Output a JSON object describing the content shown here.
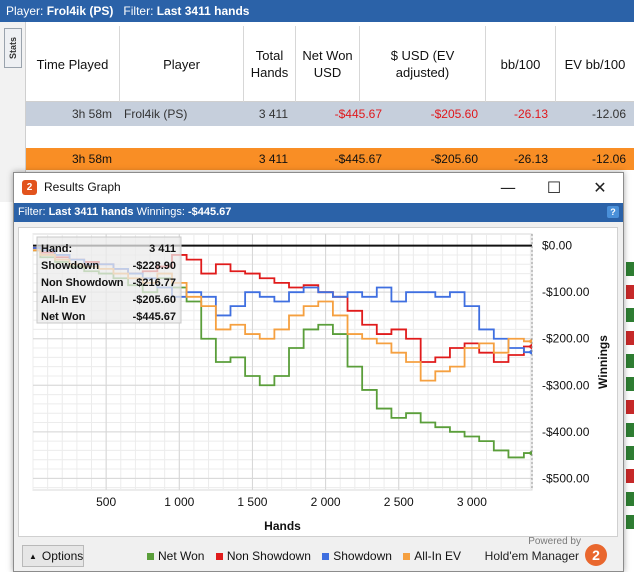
{
  "topbar": {
    "player_label": "Player:",
    "player": "Frol4ik (PS)",
    "filter_label": "Filter:",
    "filter": "Last 3411 hands"
  },
  "stats_tab": "Stats",
  "table": {
    "headers": [
      "Time Played",
      "Player",
      "Total Hands",
      "Net Won USD",
      "$ USD (EV adjusted)",
      "bb/100",
      "EV bb/100"
    ],
    "row": {
      "time": "3h 58m",
      "player": "Frol4ik (PS)",
      "hands": "3 411",
      "net": "-$445.67",
      "ev_usd": "-$205.60",
      "bb100": "-26.13",
      "ev_bb100": "-12.06"
    },
    "summary": {
      "time": "3h 58m",
      "hands": "3 411",
      "net": "-$445.67",
      "ev_usd": "-$205.60",
      "bb100": "-26.13",
      "ev_bb100": "-12.06"
    }
  },
  "graph_window": {
    "title": "Results Graph",
    "logo_char": "2",
    "minimize": "—",
    "maximize": "☐",
    "close": "✕",
    "filter_label": "Filter:",
    "filter": "Last 3411 hands",
    "winnings_label": "Winnings:",
    "winnings": "-$445.67",
    "help": "?"
  },
  "tooltip": {
    "hand_label": "Hand:",
    "hand_value": "3 411",
    "rows": [
      {
        "label": "Showdown",
        "value": "-$228.90"
      },
      {
        "label": "Non Showdown",
        "value": "-$216.77"
      },
      {
        "label": "All-In EV",
        "value": "-$205.60"
      },
      {
        "label": "Net Won",
        "value": "-$445.67"
      }
    ]
  },
  "chart_data": {
    "type": "line",
    "xlabel": "Hands",
    "ylabel": "Winnings",
    "xlim": [
      0,
      3411
    ],
    "ylim": [
      -500,
      0
    ],
    "x_ticks": [
      500,
      1000,
      1500,
      2000,
      2500,
      3000
    ],
    "x_tick_labels": [
      "500",
      "1 000",
      "1 500",
      "2 000",
      "2 500",
      "3 000"
    ],
    "y_ticks": [
      0,
      -100,
      -200,
      -300,
      -400,
      -500
    ],
    "y_tick_labels": [
      "$0.00",
      "-$100.00",
      "-$200.00",
      "-$300.00",
      "-$400.00",
      "-$500.00"
    ],
    "grid": true,
    "colors": {
      "net_won": "#5a9e3a",
      "non_showdown": "#e01b1b",
      "showdown": "#3f6fe0",
      "allin_ev": "#f5a040"
    },
    "series": [
      {
        "name": "Net Won",
        "x": [
          0,
          100,
          200,
          300,
          400,
          500,
          600,
          700,
          800,
          900,
          1000,
          1100,
          1200,
          1300,
          1400,
          1500,
          1600,
          1700,
          1800,
          1900,
          2000,
          2100,
          2200,
          2300,
          2400,
          2500,
          2600,
          2700,
          2800,
          2900,
          3000,
          3100,
          3200,
          3300,
          3411
        ],
        "y": [
          -10,
          -25,
          -35,
          -45,
          -55,
          -60,
          -70,
          -85,
          -100,
          -70,
          -90,
          -120,
          -200,
          -250,
          -240,
          -280,
          -300,
          -280,
          -220,
          -180,
          -170,
          -190,
          -260,
          -310,
          -350,
          -370,
          -360,
          -380,
          -390,
          -400,
          -410,
          -420,
          -440,
          -455,
          -445.67
        ]
      },
      {
        "name": "Non Showdown",
        "x": [
          0,
          100,
          200,
          300,
          400,
          500,
          600,
          700,
          800,
          900,
          1000,
          1100,
          1200,
          1300,
          1400,
          1500,
          1600,
          1700,
          1800,
          1900,
          2000,
          2100,
          2200,
          2300,
          2400,
          2500,
          2600,
          2700,
          2800,
          2900,
          3000,
          3100,
          3200,
          3300,
          3411
        ],
        "y": [
          -5,
          -15,
          -25,
          -30,
          -35,
          -40,
          -50,
          -60,
          -55,
          -45,
          -20,
          -30,
          -60,
          -40,
          -55,
          -60,
          -70,
          -80,
          -90,
          -85,
          -100,
          -110,
          -140,
          -170,
          -190,
          -180,
          -200,
          -250,
          -240,
          -220,
          -210,
          -230,
          -250,
          -235,
          -216.77
        ]
      },
      {
        "name": "Showdown",
        "x": [
          0,
          100,
          200,
          300,
          400,
          500,
          600,
          700,
          800,
          900,
          1000,
          1100,
          1200,
          1300,
          1400,
          1500,
          1600,
          1700,
          1800,
          1900,
          2000,
          2100,
          2200,
          2300,
          2400,
          2500,
          2600,
          2700,
          2800,
          2900,
          3000,
          3100,
          3200,
          3300,
          3411
        ],
        "y": [
          -5,
          -10,
          -20,
          -30,
          -40,
          -40,
          -50,
          -60,
          -70,
          -90,
          -110,
          -100,
          -110,
          -150,
          -130,
          -100,
          -110,
          -120,
          -100,
          -90,
          -100,
          -110,
          -100,
          -110,
          -90,
          -120,
          -100,
          -100,
          -110,
          -100,
          -130,
          -180,
          -200,
          -220,
          -228.9
        ]
      },
      {
        "name": "All-In EV",
        "x": [
          0,
          100,
          200,
          300,
          400,
          500,
          600,
          700,
          800,
          900,
          1000,
          1100,
          1200,
          1300,
          1400,
          1500,
          1600,
          1700,
          1800,
          1900,
          2000,
          2100,
          2200,
          2300,
          2400,
          2500,
          2600,
          2700,
          2800,
          2900,
          3000,
          3100,
          3200,
          3300,
          3411
        ],
        "y": [
          -10,
          -20,
          -30,
          -40,
          -45,
          -50,
          -60,
          -70,
          -80,
          -60,
          -80,
          -110,
          -130,
          -180,
          -170,
          -190,
          -200,
          -180,
          -150,
          -130,
          -120,
          -150,
          -190,
          -200,
          -210,
          -230,
          -250,
          -290,
          -270,
          -260,
          -220,
          -210,
          -230,
          -200,
          -205.6
        ]
      }
    ]
  },
  "options_button": "Options",
  "legend": [
    {
      "name": "Net Won",
      "color": "#5a9e3a"
    },
    {
      "name": "Non Showdown",
      "color": "#e01b1b"
    },
    {
      "name": "Showdown",
      "color": "#3f6fe0"
    },
    {
      "name": "All-In EV",
      "color": "#f5a040"
    }
  ],
  "branding": {
    "powered_by": "Powered by",
    "product": "Hold'em Manager",
    "logo_char": "2"
  }
}
